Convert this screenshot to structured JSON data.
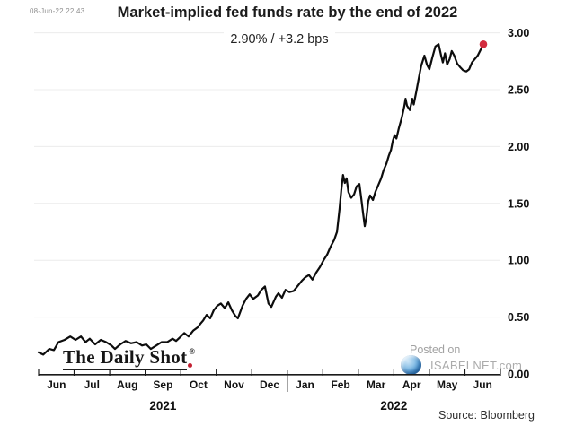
{
  "header": {
    "timestamp": "08-Jun-22 22:43",
    "title": "Market-implied fed funds rate by the end of 2022",
    "annotation": "2.90%  /  +3.2 bps"
  },
  "watermarks": {
    "daily_shot_text": "The Daily Shot",
    "daily_shot_reg": "®",
    "posted_on": "Posted on",
    "site_name": "ISABELNET.com"
  },
  "footer": {
    "source_label": "Source: Bloomberg"
  },
  "chart_data": {
    "type": "line",
    "title": "Market-implied fed funds rate by the end of 2022",
    "annotation": {
      "latest_value": "2.90%",
      "daily_change": "+3.2 bps"
    },
    "grid": "horizontal",
    "legend": "none",
    "x_axis": {
      "months": [
        "Jun",
        "Jul",
        "Aug",
        "Sep",
        "Oct",
        "Nov",
        "Dec",
        "Jan",
        "Feb",
        "Mar",
        "Apr",
        "May",
        "Jun"
      ],
      "years": [
        {
          "label": "2021",
          "span": [
            0,
            7
          ]
        },
        {
          "label": "2022",
          "span": [
            7,
            13
          ]
        }
      ],
      "year_separator_index": 7
    },
    "y_axis": {
      "side": "right",
      "min": 0,
      "max": 3,
      "step": 0.5,
      "tick_labels": [
        "0.00",
        "0.50",
        "1.00",
        "1.50",
        "2.00",
        "2.50",
        "3.00"
      ]
    },
    "style": {
      "line_color": "#0d0d0d",
      "grid_color": "#ececec",
      "axis_color": "#1a1a1a",
      "text_color": "#111111",
      "marker_color": "#d22c3f"
    },
    "series": [
      {
        "name": "Market-implied fed funds rate (%)",
        "color": "#0d0d0d",
        "points": [
          [
            0,
            0.19
          ],
          [
            0.13,
            0.17
          ],
          [
            0.3,
            0.22
          ],
          [
            0.43,
            0.21
          ],
          [
            0.56,
            0.28
          ],
          [
            0.73,
            0.3
          ],
          [
            0.89,
            0.33
          ],
          [
            1.04,
            0.3
          ],
          [
            1.19,
            0.33
          ],
          [
            1.32,
            0.28
          ],
          [
            1.44,
            0.31
          ],
          [
            1.59,
            0.26
          ],
          [
            1.75,
            0.3
          ],
          [
            1.9,
            0.28
          ],
          [
            2.05,
            0.25
          ],
          [
            2.15,
            0.22
          ],
          [
            2.3,
            0.26
          ],
          [
            2.45,
            0.29
          ],
          [
            2.6,
            0.27
          ],
          [
            2.76,
            0.28
          ],
          [
            2.91,
            0.25
          ],
          [
            3.03,
            0.26
          ],
          [
            3.16,
            0.22
          ],
          [
            3.31,
            0.25
          ],
          [
            3.46,
            0.28
          ],
          [
            3.62,
            0.28
          ],
          [
            3.77,
            0.31
          ],
          [
            3.87,
            0.29
          ],
          [
            3.97,
            0.32
          ],
          [
            4.1,
            0.36
          ],
          [
            4.22,
            0.33
          ],
          [
            4.35,
            0.38
          ],
          [
            4.48,
            0.41
          ],
          [
            4.55,
            0.44
          ],
          [
            4.63,
            0.47
          ],
          [
            4.73,
            0.52
          ],
          [
            4.83,
            0.49
          ],
          [
            4.93,
            0.56
          ],
          [
            5.03,
            0.6
          ],
          [
            5.13,
            0.62
          ],
          [
            5.24,
            0.58
          ],
          [
            5.34,
            0.63
          ],
          [
            5.44,
            0.56
          ],
          [
            5.54,
            0.51
          ],
          [
            5.61,
            0.49
          ],
          [
            5.74,
            0.6
          ],
          [
            5.84,
            0.66
          ],
          [
            5.94,
            0.7
          ],
          [
            6.04,
            0.66
          ],
          [
            6.17,
            0.69
          ],
          [
            6.27,
            0.74
          ],
          [
            6.37,
            0.77
          ],
          [
            6.47,
            0.62
          ],
          [
            6.55,
            0.59
          ],
          [
            6.68,
            0.68
          ],
          [
            6.75,
            0.71
          ],
          [
            6.85,
            0.67
          ],
          [
            6.95,
            0.74
          ],
          [
            7.06,
            0.72
          ],
          [
            7.18,
            0.73
          ],
          [
            7.31,
            0.78
          ],
          [
            7.41,
            0.82
          ],
          [
            7.51,
            0.85
          ],
          [
            7.61,
            0.87
          ],
          [
            7.71,
            0.83
          ],
          [
            7.81,
            0.89
          ],
          [
            7.92,
            0.94
          ],
          [
            8.02,
            1
          ],
          [
            8.12,
            1.05
          ],
          [
            8.22,
            1.12
          ],
          [
            8.32,
            1.18
          ],
          [
            8.4,
            1.25
          ],
          [
            8.47,
            1.45
          ],
          [
            8.52,
            1.62
          ],
          [
            8.57,
            1.75
          ],
          [
            8.62,
            1.68
          ],
          [
            8.67,
            1.72
          ],
          [
            8.72,
            1.6
          ],
          [
            8.8,
            1.55
          ],
          [
            8.88,
            1.58
          ],
          [
            8.95,
            1.65
          ],
          [
            9.03,
            1.67
          ],
          [
            9.08,
            1.55
          ],
          [
            9.13,
            1.42
          ],
          [
            9.18,
            1.3
          ],
          [
            9.23,
            1.38
          ],
          [
            9.28,
            1.52
          ],
          [
            9.33,
            1.57
          ],
          [
            9.41,
            1.53
          ],
          [
            9.48,
            1.6
          ],
          [
            9.56,
            1.66
          ],
          [
            9.64,
            1.72
          ],
          [
            9.71,
            1.79
          ],
          [
            9.79,
            1.85
          ],
          [
            9.86,
            1.92
          ],
          [
            9.92,
            1.97
          ],
          [
            9.97,
            2.05
          ],
          [
            10.02,
            2.1
          ],
          [
            10.07,
            2.07
          ],
          [
            10.14,
            2.16
          ],
          [
            10.22,
            2.25
          ],
          [
            10.29,
            2.35
          ],
          [
            10.33,
            2.42
          ],
          [
            10.37,
            2.36
          ],
          [
            10.45,
            2.32
          ],
          [
            10.52,
            2.42
          ],
          [
            10.56,
            2.37
          ],
          [
            10.63,
            2.48
          ],
          [
            10.7,
            2.6
          ],
          [
            10.77,
            2.71
          ],
          [
            10.86,
            2.8
          ],
          [
            10.93,
            2.72
          ],
          [
            11,
            2.68
          ],
          [
            11.08,
            2.78
          ],
          [
            11.17,
            2.88
          ],
          [
            11.26,
            2.9
          ],
          [
            11.33,
            2.8
          ],
          [
            11.38,
            2.74
          ],
          [
            11.44,
            2.82
          ],
          [
            11.5,
            2.72
          ],
          [
            11.57,
            2.77
          ],
          [
            11.63,
            2.84
          ],
          [
            11.7,
            2.8
          ],
          [
            11.78,
            2.73
          ],
          [
            11.86,
            2.7
          ],
          [
            11.95,
            2.67
          ],
          [
            12.04,
            2.66
          ],
          [
            12.12,
            2.68
          ],
          [
            12.2,
            2.74
          ],
          [
            12.28,
            2.77
          ],
          [
            12.36,
            2.8
          ],
          [
            12.44,
            2.85
          ],
          [
            12.52,
            2.9
          ]
        ]
      }
    ],
    "end_marker": {
      "x": 12.52,
      "value": 2.9,
      "color": "#d22c3f"
    }
  }
}
